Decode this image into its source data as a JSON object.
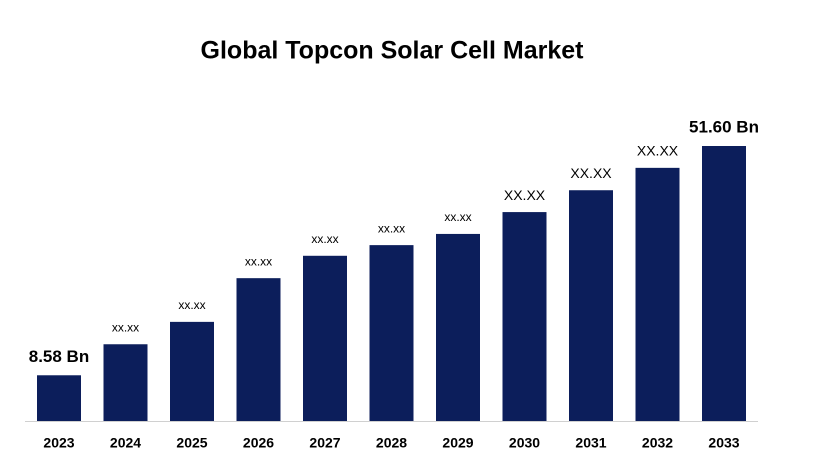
{
  "chart_data": {
    "type": "bar",
    "title": "Global Topcon Solar Cell Market",
    "categories": [
      "2023",
      "2024",
      "2025",
      "2026",
      "2027",
      "2028",
      "2029",
      "2030",
      "2031",
      "2032",
      "2033"
    ],
    "values": [
      8.58,
      14.4,
      18.6,
      26.8,
      31.0,
      33.0,
      35.1,
      39.2,
      43.3,
      47.5,
      51.6
    ],
    "value_labels": [
      "8.58 Bn",
      "xx.xx",
      "xx.xx",
      "xx.xx",
      "xx.xx",
      "xx.xx",
      "xx.xx",
      "XX.XX",
      "XX.XX",
      "XX.XX",
      "51.60 Bn"
    ],
    "color": "#0c1e5b"
  }
}
